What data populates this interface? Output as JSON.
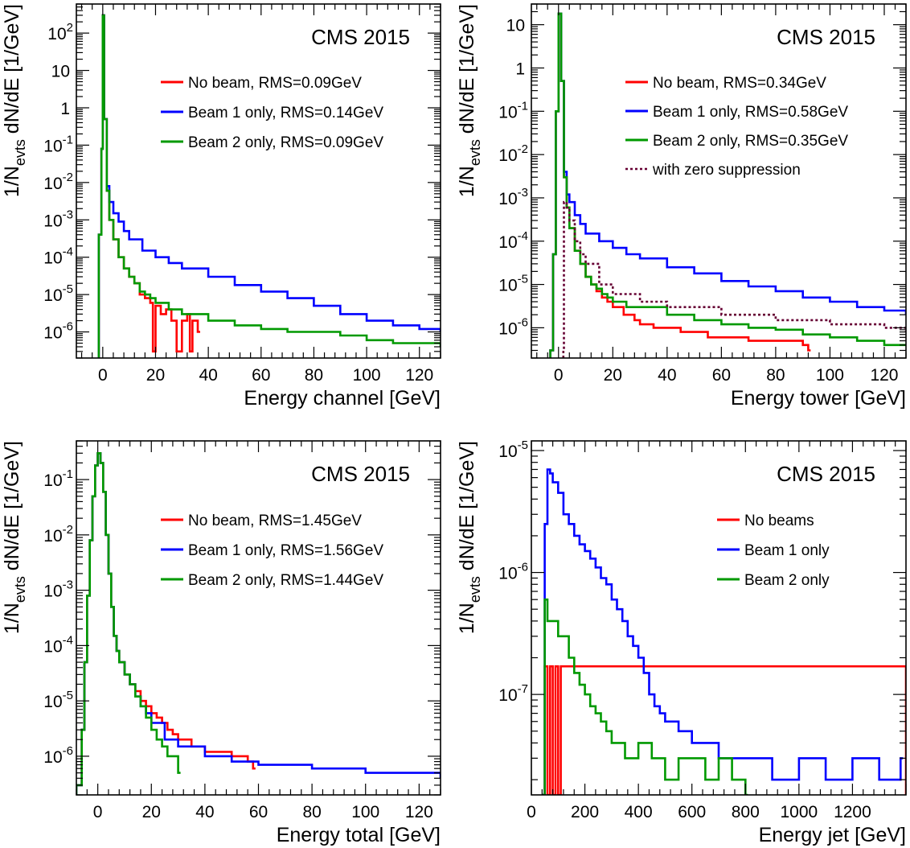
{
  "colors": {
    "no_beam": "#ff0000",
    "beam1": "#0000ff",
    "beam2": "#009900",
    "zero_suppression": "#660033"
  },
  "chart_data": [
    {
      "type": "line",
      "label": "CMS 2015",
      "xlabel": "Energy channel [GeV]",
      "ylabel": "1/N_evts dN/dE [1/GeV]",
      "xlim": [
        -10,
        128
      ],
      "ylim": [
        2e-07,
        600
      ],
      "yscale": "log",
      "xticks": [
        0,
        20,
        40,
        60,
        80,
        100,
        120
      ],
      "xtick_labels": [
        "0",
        "20",
        "40",
        "60",
        "80",
        "100",
        "120"
      ],
      "yticks": [
        1e-06,
        1e-05,
        0.0001,
        0.001,
        0.01,
        0.1,
        1,
        10,
        100
      ],
      "ytick_labels": [
        [
          "10",
          "-6"
        ],
        [
          "10",
          "-5"
        ],
        [
          "10",
          "-4"
        ],
        [
          "10",
          "-3"
        ],
        [
          "10",
          "-2"
        ],
        [
          "10",
          "-1"
        ],
        [
          "1",
          ""
        ],
        [
          "10",
          ""
        ],
        [
          "10",
          "2"
        ]
      ],
      "legend_position": "top-right",
      "series": [
        {
          "name": "No beam, RMS=0.09GeV",
          "color": "#ff0000",
          "style": "solid",
          "x": [
            -1.5,
            -0.5,
            0,
            0.5,
            1.5,
            2.5,
            4,
            6,
            8,
            10,
            12,
            14,
            16,
            18,
            19,
            20,
            22,
            24,
            26,
            28,
            30,
            32,
            33,
            34,
            36
          ],
          "y": [
            0.0004,
            0.08,
            300,
            0.5,
            0.006,
            0.001,
            0.0003,
            0.0001,
            5e-05,
            3e-05,
            2e-05,
            1e-05,
            8e-06,
            6e-06,
            3e-07,
            5e-06,
            3e-06,
            4e-06,
            2e-06,
            3e-07,
            2e-06,
            3e-06,
            3e-07,
            2e-06,
            1e-06
          ]
        },
        {
          "name": "Beam 1 only, RMS=0.14GeV",
          "color": "#0000ff",
          "style": "solid",
          "x": [
            -1.5,
            -0.5,
            0,
            0.5,
            1.5,
            2.5,
            4,
            6,
            8,
            10,
            15,
            20,
            25,
            30,
            40,
            50,
            60,
            70,
            80,
            90,
            100,
            110,
            120,
            128
          ],
          "y": [
            0.0004,
            0.08,
            300,
            0.5,
            0.008,
            0.003,
            0.0015,
            0.0009,
            0.0005,
            0.0003,
            0.00015,
            0.0001,
            7e-05,
            5e-05,
            3e-05,
            1.8e-05,
            1.2e-05,
            8e-06,
            5e-06,
            3e-06,
            2e-06,
            1.5e-06,
            1.2e-06,
            1e-06
          ]
        },
        {
          "name": "Beam 2 only, RMS=0.09GeV",
          "color": "#009900",
          "style": "solid",
          "x": [
            -1.5,
            -0.5,
            0,
            0.5,
            1.5,
            2.5,
            4,
            6,
            8,
            10,
            12,
            14,
            16,
            18,
            20,
            25,
            30,
            40,
            50,
            60,
            70,
            80,
            90,
            100,
            110,
            120,
            128
          ],
          "y": [
            0.0004,
            0.08,
            300,
            0.5,
            0.006,
            0.001,
            0.0003,
            0.0001,
            5e-05,
            3e-05,
            2e-05,
            1.2e-05,
            1e-05,
            8e-06,
            6e-06,
            4e-06,
            3e-06,
            2e-06,
            1.5e-06,
            1.2e-06,
            1e-06,
            1e-06,
            8e-07,
            6e-07,
            5e-07,
            5e-07,
            4e-07
          ]
        }
      ]
    },
    {
      "type": "line",
      "label": "CMS 2015",
      "xlabel": "Energy tower [GeV]",
      "ylabel": "1/N_evts dN/dE [1/GeV]",
      "xlim": [
        -10,
        128
      ],
      "ylim": [
        2e-07,
        30
      ],
      "yscale": "log",
      "xticks": [
        0,
        20,
        40,
        60,
        80,
        100,
        120
      ],
      "xtick_labels": [
        "0",
        "20",
        "40",
        "60",
        "80",
        "100",
        "120"
      ],
      "yticks": [
        1e-06,
        1e-05,
        0.0001,
        0.001,
        0.01,
        0.1,
        1,
        10
      ],
      "ytick_labels": [
        [
          "10",
          "-6"
        ],
        [
          "10",
          "-5"
        ],
        [
          "10",
          "-4"
        ],
        [
          "10",
          "-3"
        ],
        [
          "10",
          "-2"
        ],
        [
          "10",
          "-1"
        ],
        [
          "1",
          ""
        ],
        [
          "10",
          ""
        ]
      ],
      "legend_position": "top-right",
      "series": [
        {
          "name": "No beam, RMS=0.34GeV",
          "color": "#ff0000",
          "style": "solid",
          "x": [
            -3,
            -2,
            -1,
            0,
            1,
            2,
            3,
            4,
            6,
            8,
            10,
            12,
            14,
            16,
            18,
            20,
            22,
            24,
            26,
            28,
            30,
            35,
            40,
            45,
            50,
            55,
            60,
            70,
            80,
            90,
            92
          ],
          "y": [
            3e-07,
            5e-05,
            0.1,
            18,
            0.5,
            0.003,
            0.0006,
            0.0002,
            6e-05,
            3e-05,
            1.5e-05,
            1e-05,
            7e-06,
            5e-06,
            4e-06,
            3e-06,
            3e-06,
            2e-06,
            2e-06,
            1.5e-06,
            1.2e-06,
            1e-06,
            1e-06,
            8e-07,
            8e-07,
            6e-07,
            6e-07,
            5e-07,
            5e-07,
            4e-07,
            3e-07
          ]
        },
        {
          "name": "Beam 1 only, RMS=0.58GeV",
          "color": "#0000ff",
          "style": "solid",
          "x": [
            -3,
            -2,
            -1,
            0,
            1,
            2,
            3,
            4,
            6,
            8,
            10,
            15,
            20,
            25,
            30,
            40,
            50,
            60,
            70,
            80,
            90,
            100,
            110,
            120,
            128
          ],
          "y": [
            3e-07,
            5e-05,
            0.1,
            18,
            0.5,
            0.004,
            0.0012,
            0.0008,
            0.0004,
            0.00025,
            0.00015,
            0.0001,
            7e-05,
            5e-05,
            4e-05,
            2.5e-05,
            1.8e-05,
            1.2e-05,
            9e-06,
            7e-06,
            5e-06,
            4e-06,
            3e-06,
            2.5e-06,
            2e-06
          ]
        },
        {
          "name": "Beam 2 only, RMS=0.35GeV",
          "color": "#009900",
          "style": "solid",
          "x": [
            -3,
            -2,
            -1,
            0,
            1,
            2,
            3,
            4,
            6,
            8,
            10,
            12,
            14,
            16,
            18,
            20,
            25,
            30,
            40,
            50,
            60,
            70,
            80,
            90,
            100,
            110,
            120,
            128
          ],
          "y": [
            3e-07,
            5e-05,
            0.1,
            18,
            0.5,
            0.003,
            0.0006,
            0.0002,
            6e-05,
            3e-05,
            1.5e-05,
            1e-05,
            8e-06,
            6e-06,
            5e-06,
            4e-06,
            3e-06,
            3e-06,
            2e-06,
            1.5e-06,
            1.2e-06,
            1e-06,
            9e-07,
            7e-07,
            6e-07,
            5e-07,
            4e-07,
            4e-07
          ]
        },
        {
          "name": "with zero suppression",
          "color": "#660033",
          "style": "dotted",
          "x": [
            1.8,
            2,
            3,
            4,
            6,
            8,
            10,
            15,
            20,
            30,
            40,
            60,
            80,
            100,
            120,
            128
          ],
          "y": [
            3e-07,
            0.0008,
            0.0006,
            0.0003,
            0.0001,
            5e-05,
            3e-05,
            1e-05,
            6e-06,
            4e-06,
            3e-06,
            2e-06,
            1.5e-06,
            1.2e-06,
            1e-06,
            8e-07
          ]
        }
      ]
    },
    {
      "type": "line",
      "label": "CMS 2015",
      "xlabel": "Energy total [GeV]",
      "ylabel": "1/N_evts dN/dE [1/GeV]",
      "xlim": [
        -8,
        128
      ],
      "ylim": [
        2e-07,
        0.5
      ],
      "yscale": "log",
      "xticks": [
        0,
        20,
        40,
        60,
        80,
        100,
        120
      ],
      "xtick_labels": [
        "0",
        "20",
        "40",
        "60",
        "80",
        "100",
        "120"
      ],
      "yticks": [
        1e-06,
        1e-05,
        0.0001,
        0.001,
        0.01,
        0.1
      ],
      "ytick_labels": [
        [
          "10",
          "-6"
        ],
        [
          "10",
          "-5"
        ],
        [
          "10",
          "-4"
        ],
        [
          "10",
          "-3"
        ],
        [
          "10",
          "-2"
        ],
        [
          "10",
          "-1"
        ]
      ],
      "legend_position": "top-right",
      "series": [
        {
          "name": "No beam, RMS=1.45GeV",
          "color": "#ff0000",
          "style": "solid",
          "x": [
            -8,
            -6,
            -5,
            -4,
            -3,
            -2,
            -1,
            0,
            1,
            2,
            3,
            4,
            5,
            6,
            7,
            8,
            10,
            12,
            14,
            16,
            18,
            20,
            22,
            24,
            26,
            28,
            30,
            35,
            40,
            50,
            56,
            58
          ],
          "y": [
            3e-07,
            3e-06,
            5e-05,
            0.0008,
            0.008,
            0.05,
            0.18,
            0.3,
            0.2,
            0.06,
            0.01,
            0.002,
            0.0005,
            0.00015,
            8e-05,
            5e-05,
            3e-05,
            2e-05,
            1.5e-05,
            1e-05,
            8e-06,
            6e-06,
            5e-06,
            4e-06,
            3e-06,
            2.5e-06,
            2e-06,
            1.5e-06,
            1.2e-06,
            1e-06,
            8e-07,
            6e-07
          ]
        },
        {
          "name": "Beam 1 only, RMS=1.56GeV",
          "color": "#0000ff",
          "style": "solid",
          "x": [
            -8,
            -6,
            -5,
            -4,
            -3,
            -2,
            -1,
            0,
            1,
            2,
            3,
            4,
            5,
            6,
            7,
            8,
            10,
            12,
            14,
            16,
            18,
            20,
            25,
            30,
            40,
            50,
            60,
            80,
            100,
            120,
            128
          ],
          "y": [
            3e-07,
            3e-06,
            5e-05,
            0.0008,
            0.008,
            0.05,
            0.18,
            0.3,
            0.2,
            0.06,
            0.01,
            0.002,
            0.0005,
            0.00015,
            8e-05,
            5e-05,
            3e-05,
            2e-05,
            1.2e-05,
            8e-06,
            6e-06,
            4e-06,
            2e-06,
            1.5e-06,
            1e-06,
            8e-07,
            7e-07,
            6e-07,
            5e-07,
            5e-07,
            4e-07
          ]
        },
        {
          "name": "Beam 2 only, RMS=1.44GeV",
          "color": "#009900",
          "style": "solid",
          "x": [
            -8,
            -6,
            -5,
            -4,
            -3,
            -2,
            -1,
            0,
            1,
            2,
            3,
            4,
            5,
            6,
            7,
            8,
            10,
            12,
            14,
            16,
            18,
            20,
            22,
            24,
            26,
            30
          ],
          "y": [
            3e-07,
            3e-06,
            5e-05,
            0.0008,
            0.008,
            0.05,
            0.18,
            0.3,
            0.2,
            0.06,
            0.01,
            0.002,
            0.0005,
            0.00015,
            8e-05,
            5e-05,
            3e-05,
            2e-05,
            1.2e-05,
            8e-06,
            5e-06,
            3e-06,
            2e-06,
            1.5e-06,
            1e-06,
            5e-07
          ]
        }
      ]
    },
    {
      "type": "line",
      "label": "CMS 2015",
      "xlabel": "Energy jet [GeV]",
      "ylabel": "1/N_evts dN/dE [1/GeV]",
      "xlim": [
        0,
        1400
      ],
      "ylim": [
        1.5e-08,
        1.2e-05
      ],
      "yscale": "log",
      "xticks": [
        0,
        200,
        400,
        600,
        800,
        1000,
        1200
      ],
      "xtick_labels": [
        "0",
        "200",
        "400",
        "600",
        "800",
        "1000",
        "1200"
      ],
      "yticks": [
        1e-07,
        1e-06,
        1e-05
      ],
      "ytick_labels": [
        [
          "10",
          "-7"
        ],
        [
          "10",
          "-6"
        ],
        [
          "10",
          "-5"
        ]
      ],
      "legend_position": "top-right",
      "series": [
        {
          "name": "No beams",
          "color": "#ff0000",
          "style": "solid",
          "x": [
            40,
            50,
            60,
            70,
            80,
            90,
            100,
            110,
            1400
          ],
          "y": [
            1.5e-08,
            1.7e-07,
            1.5e-08,
            1.7e-07,
            1.5e-08,
            1.7e-07,
            1.5e-08,
            1.7e-07,
            1.5e-08
          ]
        },
        {
          "name": "Beam 1 only",
          "color": "#0000ff",
          "style": "solid",
          "x": [
            40,
            50,
            60,
            70,
            80,
            100,
            120,
            140,
            160,
            180,
            200,
            220,
            240,
            260,
            280,
            300,
            320,
            340,
            360,
            380,
            400,
            420,
            440,
            460,
            480,
            500,
            550,
            600,
            700,
            800,
            900,
            1000,
            1100,
            1200,
            1300,
            1380
          ],
          "y": [
            1.5e-08,
            2.5e-06,
            7e-06,
            6.5e-06,
            5.5e-06,
            4.5e-06,
            3e-06,
            2.5e-06,
            2e-06,
            1.7e-06,
            1.5e-06,
            1.3e-06,
            1.1e-06,
            9e-07,
            8e-07,
            6e-07,
            5e-07,
            4e-07,
            3e-07,
            2.5e-07,
            2e-07,
            1.5e-07,
            1e-07,
            8e-08,
            7e-08,
            6e-08,
            5e-08,
            4e-08,
            3e-08,
            3e-08,
            2e-08,
            3e-08,
            2e-08,
            3e-08,
            2e-08,
            3e-08
          ]
        },
        {
          "name": "Beam 2 only",
          "color": "#009900",
          "style": "solid",
          "x": [
            40,
            50,
            60,
            80,
            100,
            120,
            140,
            160,
            180,
            200,
            220,
            240,
            260,
            280,
            300,
            350,
            400,
            450,
            500,
            550,
            600,
            650,
            700,
            750,
            800
          ],
          "y": [
            1.5e-08,
            6e-07,
            4e-07,
            4e-07,
            3e-07,
            3e-07,
            2e-07,
            1.5e-07,
            1.2e-07,
            1e-07,
            8e-08,
            7e-08,
            6e-08,
            5e-08,
            4e-08,
            3e-08,
            4e-08,
            3e-08,
            2e-08,
            3e-08,
            3e-08,
            2e-08,
            3e-08,
            2e-08,
            1.5e-08
          ]
        }
      ]
    }
  ]
}
